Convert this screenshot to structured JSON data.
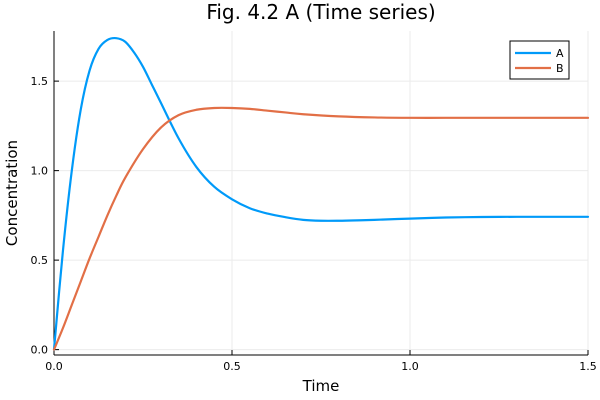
{
  "chart_data": {
    "type": "line",
    "title": "Fig. 4.2 A (Time series)",
    "xlabel": "Time",
    "ylabel": "Concentration",
    "xlim": [
      0,
      1.5
    ],
    "ylim": [
      -0.03,
      1.78
    ],
    "x_ticks": [
      "0.0",
      "0.5",
      "1.0",
      "1.5"
    ],
    "y_ticks": [
      "0.0",
      "0.5",
      "1.0",
      "1.5"
    ],
    "grid": true,
    "legend_position": "top-right",
    "series": [
      {
        "name": "A",
        "color": "#009af9",
        "x": [
          0,
          0.025,
          0.05,
          0.075,
          0.1,
          0.125,
          0.15,
          0.175,
          0.2,
          0.225,
          0.25,
          0.275,
          0.3,
          0.35,
          0.4,
          0.45,
          0.5,
          0.55,
          0.6,
          0.65,
          0.7,
          0.75,
          0.8,
          0.85,
          0.9,
          1.0,
          1.1,
          1.2,
          1.3,
          1.4,
          1.5
        ],
        "y": [
          0,
          0.55,
          1.0,
          1.34,
          1.56,
          1.68,
          1.73,
          1.74,
          1.72,
          1.66,
          1.58,
          1.48,
          1.38,
          1.18,
          1.02,
          0.91,
          0.84,
          0.79,
          0.76,
          0.74,
          0.725,
          0.72,
          0.72,
          0.722,
          0.725,
          0.732,
          0.738,
          0.741,
          0.742,
          0.742,
          0.742
        ]
      },
      {
        "name": "B",
        "color": "#e26f46",
        "x": [
          0,
          0.025,
          0.05,
          0.075,
          0.1,
          0.125,
          0.15,
          0.175,
          0.2,
          0.25,
          0.3,
          0.35,
          0.4,
          0.45,
          0.5,
          0.55,
          0.6,
          0.65,
          0.7,
          0.8,
          0.9,
          1.0,
          1.1,
          1.2,
          1.3,
          1.4,
          1.5
        ],
        "y": [
          0,
          0.12,
          0.25,
          0.38,
          0.51,
          0.63,
          0.75,
          0.86,
          0.96,
          1.12,
          1.24,
          1.31,
          1.34,
          1.35,
          1.35,
          1.345,
          1.335,
          1.325,
          1.315,
          1.303,
          1.297,
          1.295,
          1.295,
          1.295,
          1.295,
          1.295,
          1.295
        ]
      }
    ]
  }
}
